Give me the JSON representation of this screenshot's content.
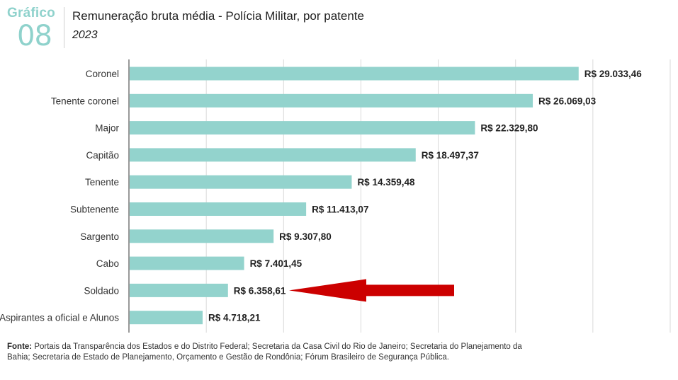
{
  "header": {
    "label": "Gráfico",
    "number": "08",
    "title": "Remuneração bruta média - Polícia Militar, por patente",
    "subtitle": "2023"
  },
  "footer": {
    "label": "Fonte:",
    "text": "Portais da Transparência dos Estados e do Distrito Federal; Secretaria da Casa Civil do Rio de Janeiro; Secretaria do Planejamento da Bahia; Secretaria de Estado de Planejamento, Orçamento e Gestão de Rondônia; Fórum Brasileiro de Segurança Pública."
  },
  "chart_data": {
    "type": "bar",
    "orientation": "horizontal",
    "categories": [
      "Coronel",
      "Tenente coronel",
      "Major",
      "Capitão",
      "Tenente",
      "Subtenente",
      "Sargento",
      "Cabo",
      "Soldado",
      "Aspirantes a oficial e Alunos"
    ],
    "values": [
      29033.46,
      26069.03,
      22329.8,
      18497.37,
      14359.48,
      11413.07,
      9307.8,
      7401.45,
      6358.61,
      4718.21
    ],
    "value_labels": [
      "R$ 29.033,46",
      "R$ 26.069,03",
      "R$ 22.329,80",
      "R$ 18.497,37",
      "R$ 14.359,48",
      "R$ 11.413,07",
      "R$ 9.307,80",
      "R$ 7.401,45",
      "R$ 6.358,61",
      "R$ 4.718,21"
    ],
    "xlim": [
      0,
      35000
    ],
    "grid": true,
    "bar_color": "#93d3cd",
    "annotation": {
      "type": "arrow",
      "target_category": "Soldado",
      "color": "#cc0000"
    }
  }
}
